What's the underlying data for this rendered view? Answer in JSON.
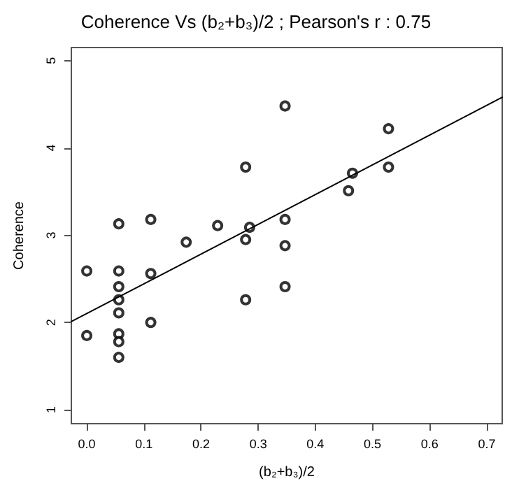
{
  "chart_data": {
    "type": "scatter",
    "title": "Coherence Vs (b₂+b₃)/2 ; Pearson's r : 0.75",
    "xlabel": "(b₂+b₃)/2",
    "ylabel": "Coherence",
    "xlim": [
      -0.027,
      0.727
    ],
    "ylim": [
      0.84,
      5.15
    ],
    "xticks": [
      {
        "value": 0,
        "label": "0.0"
      },
      0.1,
      0.2,
      0.3,
      0.4,
      0.5,
      0.6,
      0.7
    ],
    "yticks": [
      1,
      2,
      3,
      4,
      5
    ],
    "grid": false,
    "marker": "circle",
    "series": [
      {
        "color": "#000000",
        "x": [
          0.0,
          0.0,
          0.056,
          0.056,
          0.056,
          0.056,
          0.056,
          0.056,
          0.056,
          0.056,
          0.112,
          0.112,
          0.112,
          0.174,
          0.229,
          0.278,
          0.278,
          0.278,
          0.285,
          0.347,
          0.347,
          0.347,
          0.347,
          0.458,
          0.465,
          0.528,
          0.528
        ],
        "values": [
          2.59,
          1.85,
          3.13,
          2.59,
          2.41,
          2.26,
          2.11,
          1.87,
          1.78,
          1.6,
          3.18,
          2.56,
          2.0,
          2.92,
          3.11,
          3.78,
          2.95,
          2.26,
          3.09,
          4.48,
          3.18,
          2.88,
          2.41,
          3.51,
          3.71,
          4.22,
          3.78
        ]
      },
      {
        "type": "line",
        "color": "#000000",
        "marker": "none",
        "line_style": "solid",
        "x": [
          -0.027,
          0.727
        ],
        "values": [
          2.01,
          4.58
        ]
      }
    ]
  }
}
